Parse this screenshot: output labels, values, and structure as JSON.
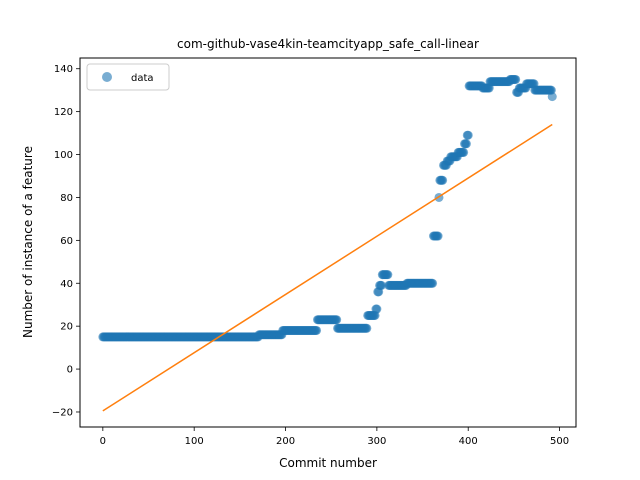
{
  "chart_data": {
    "type": "scatter",
    "title": "com-github-vase4kin-teamcityapp_safe_call-linear",
    "xlabel": "Commit number",
    "ylabel": "Number of instance of a feature",
    "xlim": [
      -25,
      518
    ],
    "ylim": [
      -27,
      145
    ],
    "xticks": [
      0,
      100,
      200,
      300,
      400,
      500
    ],
    "yticks": [
      -20,
      0,
      20,
      40,
      60,
      80,
      100,
      120,
      140
    ],
    "ytick_labels": [
      "−20",
      "0",
      "20",
      "40",
      "60",
      "80",
      "100",
      "120",
      "140"
    ],
    "legend": {
      "position": "upper-left",
      "entries": [
        "data"
      ]
    },
    "grid": false,
    "colors": {
      "scatter": "#1f77b4",
      "fit": "#ff7f0e"
    },
    "series": [
      {
        "name": "data",
        "kind": "scatter",
        "segments": [
          {
            "x_start": 0,
            "x_end": 170,
            "y": 15
          },
          {
            "x_start": 171,
            "x_end": 196,
            "y": 16
          },
          {
            "x_start": 197,
            "x_end": 234,
            "y": 18
          },
          {
            "x_start": 235,
            "x_end": 256,
            "y": 23
          },
          {
            "x_start": 257,
            "x_end": 289,
            "y": 19
          },
          {
            "x_start": 290,
            "x_end": 298,
            "y": 25
          },
          {
            "x_start": 299,
            "x_end": 300,
            "y": 28
          },
          {
            "x_start": 301,
            "x_end": 302,
            "y": 36
          },
          {
            "x_start": 303,
            "x_end": 305,
            "y": 39
          },
          {
            "x_start": 306,
            "x_end": 312,
            "y": 44
          },
          {
            "x_start": 313,
            "x_end": 332,
            "y": 39
          },
          {
            "x_start": 333,
            "x_end": 361,
            "y": 40
          },
          {
            "x_start": 362,
            "x_end": 367,
            "y": 62
          },
          {
            "x_start": 368,
            "x_end": 368,
            "y": 80
          },
          {
            "x_start": 369,
            "x_end": 372,
            "y": 88
          },
          {
            "x_start": 373,
            "x_end": 376,
            "y": 95
          },
          {
            "x_start": 377,
            "x_end": 380,
            "y": 97
          },
          {
            "x_start": 381,
            "x_end": 388,
            "y": 99
          },
          {
            "x_start": 389,
            "x_end": 395,
            "y": 101
          },
          {
            "x_start": 396,
            "x_end": 398,
            "y": 105
          },
          {
            "x_start": 399,
            "x_end": 400,
            "y": 109
          },
          {
            "x_start": 401,
            "x_end": 415,
            "y": 132
          },
          {
            "x_start": 416,
            "x_end": 423,
            "y": 131
          },
          {
            "x_start": 424,
            "x_end": 445,
            "y": 134
          },
          {
            "x_start": 446,
            "x_end": 452,
            "y": 135
          },
          {
            "x_start": 453,
            "x_end": 455,
            "y": 129
          },
          {
            "x_start": 456,
            "x_end": 463,
            "y": 131
          },
          {
            "x_start": 464,
            "x_end": 472,
            "y": 133
          },
          {
            "x_start": 473,
            "x_end": 491,
            "y": 130
          },
          {
            "x_start": 492,
            "x_end": 492,
            "y": 127
          }
        ]
      },
      {
        "name": "",
        "kind": "line",
        "x": [
          0,
          492
        ],
        "y": [
          -19.5,
          114
        ]
      }
    ]
  }
}
